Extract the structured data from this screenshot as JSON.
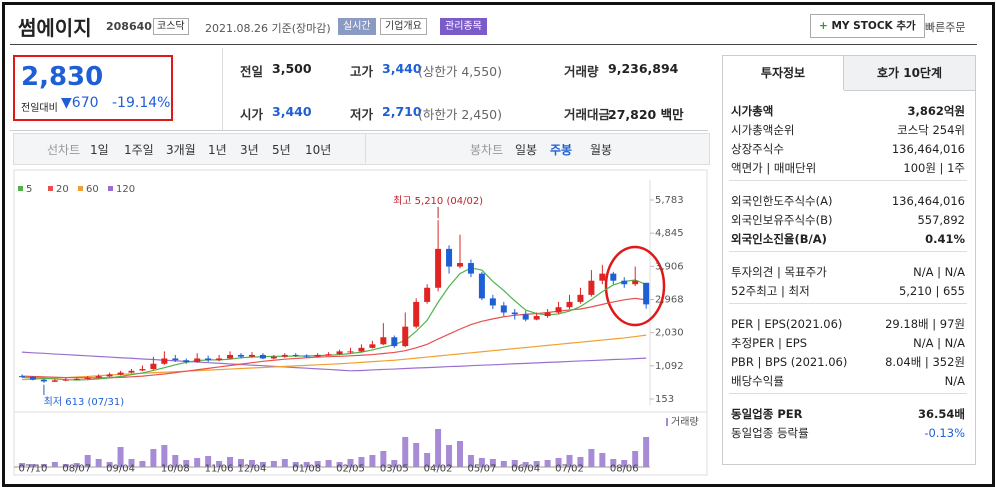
{
  "header": {
    "name": "썸에이지",
    "code": "208640",
    "market": "코스닥",
    "date": "2021.08.26 기준(장마감)",
    "buttons": [
      "실시간",
      "기업개요",
      "관리종목"
    ],
    "mystock": "MY STOCK 추가",
    "quick": "빠른주문"
  },
  "price": {
    "current": "2,830",
    "change_label": "전일대비",
    "change": "670",
    "change_pct": "-19.14%"
  },
  "stats": [
    {
      "label": "전일",
      "value": "3,500"
    },
    {
      "label": "고가",
      "value": "3,440",
      "extra": "(상한가 4,550)"
    },
    {
      "label": "거래량",
      "value": "9,236,894"
    },
    {
      "label": "시가",
      "value": "3,440"
    },
    {
      "label": "저가",
      "value": "2,710",
      "extra": "(하한가 2,450)"
    },
    {
      "label": "거래대금",
      "value": "27,820 백만"
    }
  ],
  "chart_tabs": {
    "line_label": "선차트",
    "line_periods": [
      "1일",
      "1주일",
      "3개월",
      "1년",
      "3년",
      "5년",
      "10년"
    ],
    "candle_label": "봉차트",
    "candle_periods": [
      "일봉",
      "주봉",
      "월봉"
    ]
  },
  "chart_data": {
    "type": "candlestick",
    "up_color": "#e02424",
    "down_color": "#1f5fd6",
    "categories": [
      null,
      "07/10",
      null,
      null,
      null,
      "08/07",
      null,
      null,
      null,
      "09/04",
      null,
      null,
      null,
      null,
      "10/08",
      null,
      null,
      null,
      "11/06",
      null,
      null,
      "12/04",
      null,
      null,
      null,
      null,
      "01/08",
      null,
      null,
      null,
      "02/05",
      null,
      null,
      null,
      "03/05",
      null,
      null,
      null,
      "04/02",
      null,
      null,
      null,
      "05/07",
      null,
      null,
      null,
      "06/04",
      null,
      null,
      null,
      "07/02",
      null,
      null,
      null,
      null,
      "08/06",
      null,
      null
    ],
    "open": [
      800,
      780,
      700,
      640,
      680,
      700,
      720,
      760,
      790,
      840,
      900,
      960,
      1000,
      1150,
      1300,
      1250,
      1200,
      1300,
      1250,
      1300,
      1400,
      1350,
      1400,
      1300,
      1350,
      1400,
      1380,
      1350,
      1400,
      1420,
      1500,
      1500,
      1600,
      1700,
      1900,
      1650,
      2200,
      2900,
      3300,
      4400,
      3900,
      4000,
      3700,
      3000,
      2800,
      2600,
      2550,
      2400,
      2500,
      2600,
      2750,
      2900,
      3100,
      3500,
      3700,
      3500,
      3400,
      3440
    ],
    "high": [
      850,
      800,
      720,
      720,
      750,
      760,
      800,
      850,
      900,
      950,
      1000,
      1100,
      1350,
      1500,
      1400,
      1300,
      1450,
      1380,
      1400,
      1500,
      1450,
      1480,
      1450,
      1400,
      1450,
      1450,
      1420,
      1450,
      1480,
      1550,
      1600,
      1700,
      1800,
      2300,
      1950,
      2600,
      3000,
      3400,
      5210,
      4500,
      4800,
      4100,
      3750,
      3100,
      2900,
      2700,
      2650,
      2600,
      2700,
      2900,
      3100,
      3300,
      3800,
      3950,
      3750,
      3600,
      3900,
      3440
    ],
    "low": [
      760,
      680,
      613,
      630,
      660,
      690,
      700,
      740,
      770,
      820,
      880,
      940,
      980,
      1120,
      1200,
      1150,
      1180,
      1200,
      1220,
      1280,
      1300,
      1320,
      1280,
      1280,
      1320,
      1340,
      1320,
      1330,
      1380,
      1400,
      1450,
      1480,
      1580,
      1680,
      1600,
      1620,
      2150,
      2850,
      3200,
      3700,
      3850,
      3600,
      2950,
      2700,
      2500,
      2400,
      2350,
      2380,
      2450,
      2550,
      2700,
      2850,
      3050,
      3400,
      3400,
      3300,
      3350,
      2710
    ],
    "close": [
      780,
      700,
      650,
      680,
      700,
      720,
      760,
      800,
      850,
      900,
      950,
      1000,
      1150,
      1300,
      1250,
      1200,
      1300,
      1250,
      1300,
      1400,
      1350,
      1400,
      1300,
      1350,
      1400,
      1380,
      1350,
      1400,
      1420,
      1500,
      1500,
      1600,
      1700,
      1900,
      1650,
      2200,
      2900,
      3300,
      4400,
      3900,
      4000,
      3700,
      3000,
      2800,
      2600,
      2550,
      2400,
      2500,
      2600,
      2750,
      2900,
      3100,
      3500,
      3700,
      3500,
      3400,
      3500,
      2830
    ],
    "series": [
      {
        "name": "5",
        "color": "#4fb34a",
        "values": [
          760,
          750,
          740,
          720,
          700,
          690,
          700,
          720,
          750,
          790,
          840,
          890,
          960,
          1040,
          1120,
          1190,
          1240,
          1260,
          1260,
          1280,
          1320,
          1340,
          1350,
          1360,
          1360,
          1370,
          1370,
          1380,
          1390,
          1410,
          1440,
          1480,
          1540,
          1620,
          1690,
          1810,
          2070,
          2380,
          2890,
          3340,
          3700,
          3860,
          3800,
          3480,
          3220,
          2930,
          2670,
          2570,
          2530,
          2560,
          2640,
          2770,
          2970,
          3190,
          3380,
          3480,
          3520,
          3390
        ]
      },
      {
        "name": "20",
        "color": "#e85050",
        "values": [
          800,
          790,
          780,
          770,
          760,
          755,
          750,
          750,
          755,
          765,
          780,
          800,
          830,
          860,
          900,
          940,
          980,
          1020,
          1060,
          1100,
          1140,
          1180,
          1220,
          1250,
          1280,
          1300,
          1320,
          1340,
          1350,
          1360,
          1375,
          1390,
          1410,
          1440,
          1470,
          1520,
          1600,
          1700,
          1850,
          1990,
          2130,
          2260,
          2350,
          2420,
          2480,
          2520,
          2550,
          2570,
          2600,
          2640,
          2670,
          2700,
          2760,
          2830,
          2900,
          2960,
          3000,
          2960
        ]
      },
      {
        "name": "60",
        "color": "#f0a030",
        "values": [
          700,
          715,
          730,
          745,
          760,
          775,
          790,
          810,
          830,
          850,
          865,
          880,
          895,
          910,
          925,
          940,
          955,
          970,
          985,
          1000,
          1015,
          1030,
          1045,
          1060,
          1075,
          1090,
          1105,
          1120,
          1135,
          1150,
          1170,
          1190,
          1210,
          1230,
          1250,
          1280,
          1310,
          1340,
          1370,
          1400,
          1430,
          1460,
          1490,
          1520,
          1550,
          1580,
          1610,
          1640,
          1670,
          1700,
          1730,
          1760,
          1790,
          1820,
          1850,
          1880,
          1920,
          1960
        ]
      },
      {
        "name": "120",
        "color": "#9b6fd1",
        "values": [
          1480,
          1460,
          1445,
          1425,
          1410,
          1390,
          1375,
          1355,
          1340,
          1320,
          1305,
          1285,
          1270,
          1250,
          1235,
          1215,
          1200,
          1180,
          1165,
          1145,
          1130,
          1110,
          1095,
          1075,
          1060,
          1040,
          1025,
          1005,
          990,
          970,
          950,
          960,
          975,
          990,
          1000,
          1015,
          1030,
          1040,
          1055,
          1070,
          1080,
          1095,
          1110,
          1120,
          1135,
          1150,
          1160,
          1175,
          1190,
          1200,
          1215,
          1230,
          1240,
          1255,
          1270,
          1280,
          1295,
          1310
        ]
      }
    ],
    "ylim": [
      153,
      5783
    ],
    "yticks": [
      {
        "value": 5783,
        "label": "5,783"
      },
      {
        "value": 4845,
        "label": "4,845"
      },
      {
        "value": 3906,
        "label": "3,906"
      },
      {
        "value": 2968,
        "label": "2,968"
      },
      {
        "value": 2030,
        "label": "2,030"
      },
      {
        "value": 1092,
        "label": "1,092"
      },
      153
    ],
    "annotations": {
      "high": "최고 5,210 (04/02)",
      "low": "최저 613 (07/31)"
    },
    "volume": {
      "label": "거래량",
      "color": "#a78bd6",
      "ylim": [
        0,
        20000000
      ],
      "values": [
        2000000,
        1500000,
        1500000,
        2500000,
        1500000,
        2000000,
        6000000,
        4000000,
        2500000,
        10000000,
        4000000,
        3000000,
        9000000,
        11000000,
        6000000,
        3500000,
        4500000,
        5500000,
        3000000,
        5000000,
        4000000,
        3500000,
        2500000,
        3000000,
        4000000,
        2500000,
        2500000,
        3000000,
        3500000,
        2500000,
        4000000,
        5000000,
        6000000,
        8000000,
        3500000,
        15000000,
        12000000,
        7000000,
        19000000,
        11000000,
        13000000,
        6000000,
        4500000,
        4000000,
        3000000,
        3500000,
        2500000,
        3000000,
        3500000,
        4500000,
        6000000,
        5000000,
        9000000,
        7000000,
        4000000,
        3500000,
        8000000,
        15000000
      ]
    }
  },
  "invest": {
    "tabs": [
      "투자정보",
      "호가 10단계"
    ],
    "sections": [
      [
        {
          "label": "시가총액",
          "value": "3,862억원",
          "bold": true
        },
        {
          "label": "시가총액순위",
          "value": "코스닥 254위"
        },
        {
          "label": "상장주식수",
          "value": "136,464,016"
        },
        {
          "label": "액면가 | 매매단위",
          "value": "100원 | 1주"
        }
      ],
      [
        {
          "label": "외국인한도주식수(A)",
          "value": "136,464,016"
        },
        {
          "label": "외국인보유주식수(B)",
          "value": "557,892"
        },
        {
          "label": "외국인소진율(B/A)",
          "value": "0.41%",
          "bold": true
        }
      ],
      [
        {
          "label": "투자의견 | 목표주가",
          "value": "N/A | N/A"
        },
        {
          "label": "52주최고 | 최저",
          "value": "5,210 | 655"
        }
      ],
      [
        {
          "label": "PER | EPS(2021.06)",
          "value": "29.18배 | 97원"
        },
        {
          "label": "추정PER | EPS",
          "value": "N/A | N/A"
        },
        {
          "label": "PBR | BPS (2021.06)",
          "value": "8.04배 | 352원"
        },
        {
          "label": "배당수익률",
          "value": "N/A"
        }
      ],
      [
        {
          "label": "동일업종 PER",
          "value": "36.54배",
          "bold": true
        },
        {
          "label": "동일업종 등락률",
          "value": "-0.13%",
          "color": "#1f5fd6"
        }
      ]
    ]
  }
}
